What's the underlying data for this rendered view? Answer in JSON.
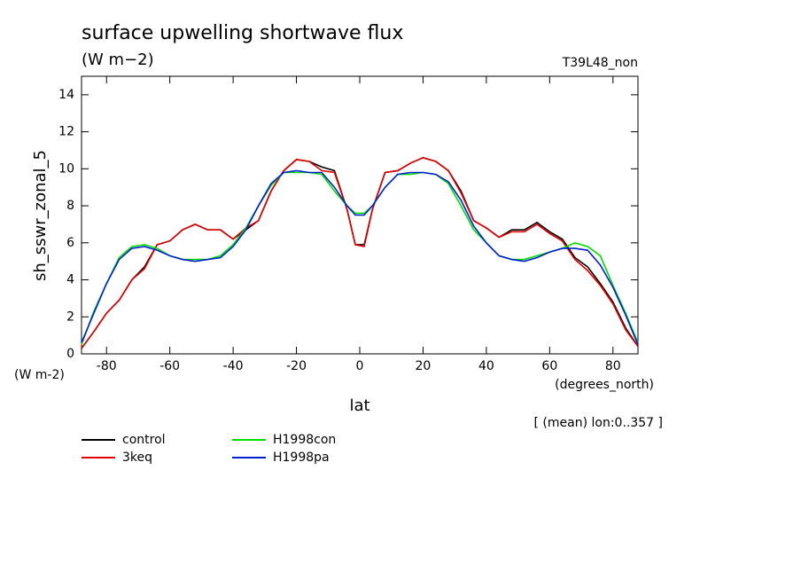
{
  "chart_data": {
    "type": "line",
    "title": "surface upwelling shortwave flux",
    "subtitle": "(W m−2)",
    "run_label": "T39L48_non",
    "ylabel": "sh_sswr_zonal_5",
    "yunit": "(W m-2)",
    "xlabel": "lat",
    "xunit": "(degrees_north)",
    "note": "[ (mean) lon:0..357 ]",
    "xlim": [
      -87.9,
      87.9
    ],
    "ylim": [
      0,
      15
    ],
    "xticks": [
      -80,
      -60,
      -40,
      -20,
      0,
      20,
      40,
      60,
      80
    ],
    "yticks": [
      0,
      2,
      4,
      6,
      8,
      10,
      12,
      14
    ],
    "x": [
      -87.9,
      -84,
      -80,
      -76,
      -72,
      -68,
      -64,
      -60,
      -56,
      -52,
      -48,
      -44,
      -40,
      -36,
      -32,
      -28,
      -24,
      -20,
      -16,
      -12,
      -8,
      -4,
      -1.4,
      1.4,
      4,
      8,
      12,
      16,
      20,
      24,
      28,
      32,
      36,
      40,
      44,
      48,
      52,
      56,
      60,
      64,
      68,
      72,
      76,
      80,
      84,
      87.9
    ],
    "series": [
      {
        "name": "control",
        "color": "#000000",
        "values": [
          0.3,
          1.2,
          2.2,
          2.9,
          4.0,
          4.7,
          5.9,
          6.1,
          6.7,
          7.0,
          6.7,
          6.7,
          6.2,
          6.7,
          7.2,
          8.8,
          9.9,
          10.5,
          10.4,
          10.1,
          9.9,
          7.8,
          5.9,
          5.9,
          7.8,
          9.8,
          9.9,
          10.3,
          10.6,
          10.4,
          9.9,
          8.8,
          7.2,
          6.8,
          6.3,
          6.7,
          6.7,
          7.1,
          6.6,
          6.2,
          5.2,
          4.7,
          3.8,
          2.8,
          1.4,
          0.4
        ]
      },
      {
        "name": "3keq",
        "color": "#e00000",
        "values": [
          0.3,
          1.2,
          2.2,
          2.9,
          4.0,
          4.6,
          5.9,
          6.1,
          6.7,
          7.0,
          6.7,
          6.7,
          6.2,
          6.8,
          7.2,
          8.8,
          9.9,
          10.5,
          10.4,
          9.9,
          9.8,
          7.8,
          5.9,
          5.8,
          7.8,
          9.8,
          9.9,
          10.3,
          10.6,
          10.4,
          9.9,
          8.7,
          7.2,
          6.8,
          6.3,
          6.6,
          6.6,
          7.0,
          6.5,
          6.1,
          5.1,
          4.5,
          3.7,
          2.7,
          1.3,
          0.4
        ]
      },
      {
        "name": "H1998con",
        "color": "#00e000",
        "values": [
          0.5,
          2.3,
          3.8,
          5.2,
          5.8,
          5.9,
          5.7,
          5.3,
          5.1,
          5.1,
          5.1,
          5.3,
          5.9,
          6.8,
          8.0,
          9.1,
          9.8,
          9.8,
          9.8,
          9.7,
          8.8,
          8.0,
          7.6,
          7.6,
          8.0,
          9.0,
          9.7,
          9.7,
          9.8,
          9.7,
          9.2,
          8.0,
          6.7,
          6.0,
          5.3,
          5.1,
          5.1,
          5.3,
          5.5,
          5.7,
          6.0,
          5.8,
          5.3,
          3.7,
          2.2,
          0.6
        ]
      },
      {
        "name": "H1998pa",
        "color": "#0020d0",
        "values": [
          0.6,
          2.2,
          3.8,
          5.1,
          5.7,
          5.8,
          5.6,
          5.3,
          5.1,
          5.0,
          5.1,
          5.2,
          5.8,
          6.7,
          8.0,
          9.2,
          9.8,
          9.9,
          9.8,
          9.8,
          9.0,
          8.0,
          7.5,
          7.5,
          8.0,
          9.0,
          9.7,
          9.8,
          9.8,
          9.7,
          9.3,
          8.3,
          6.9,
          6.0,
          5.3,
          5.1,
          5.0,
          5.2,
          5.5,
          5.7,
          5.7,
          5.6,
          4.8,
          3.6,
          2.1,
          0.5
        ]
      }
    ]
  }
}
